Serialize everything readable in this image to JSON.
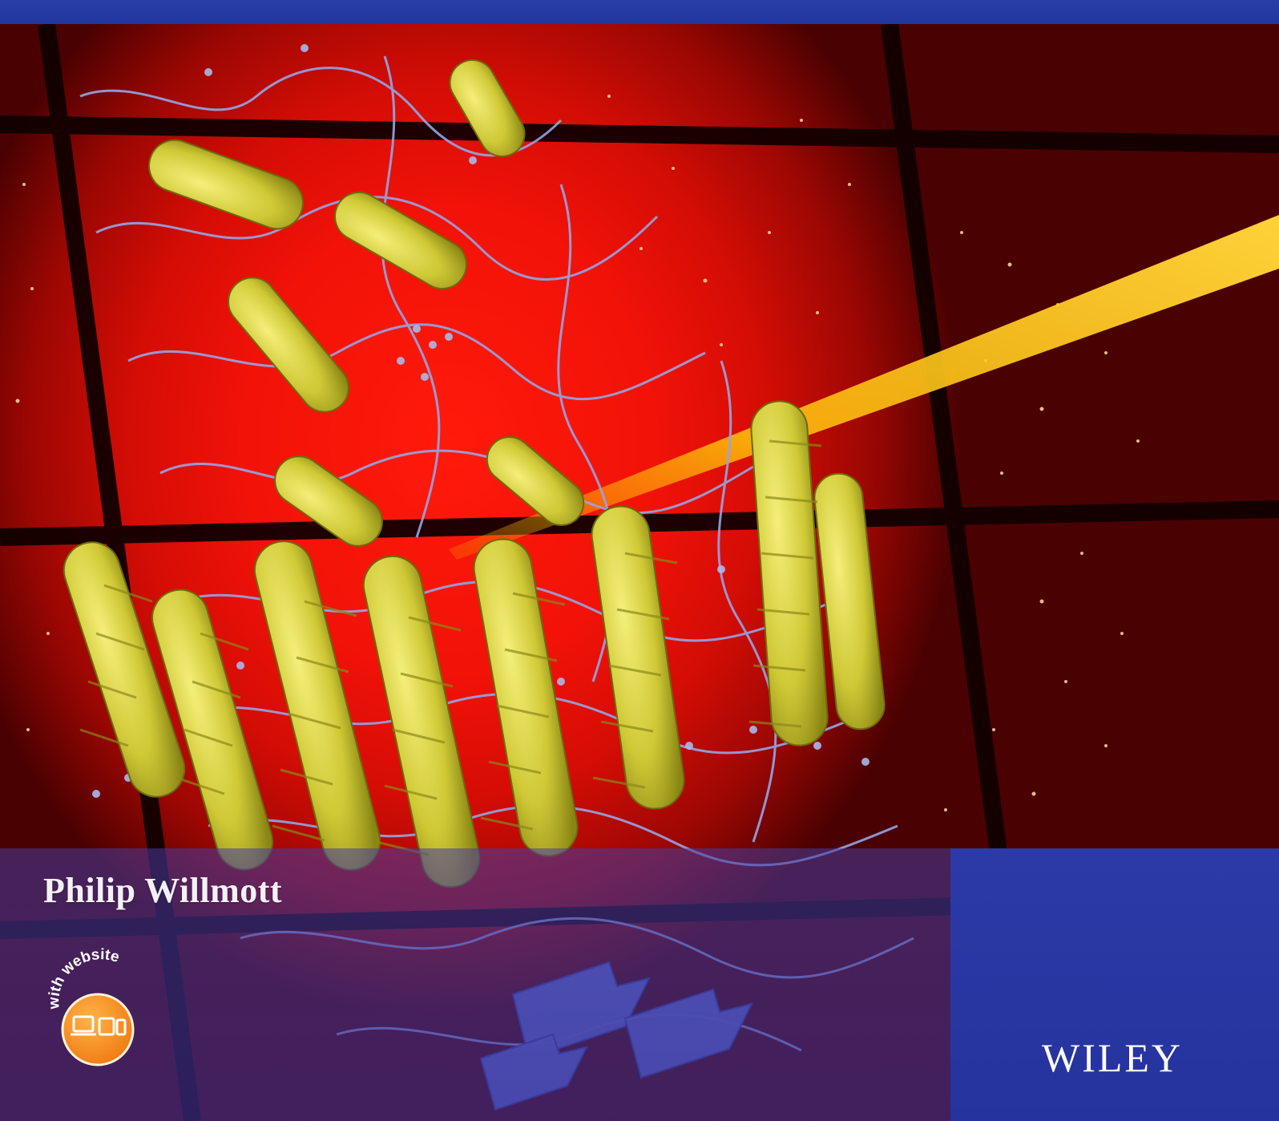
{
  "cover": {
    "author": "Philip Willmott",
    "publisher": "WILEY",
    "badge_text": "with website",
    "badge_icon": "devices-icon",
    "background_icon": "protein-structure-illustration",
    "colors": {
      "top_bar": "#2b3fa8",
      "background_red": "#f21208",
      "helix_yellow": "#d8d23a",
      "coil_blue": "#8fa2e0",
      "beam_yellow": "#ffc20a",
      "blue_panel": "#2c3aa8",
      "badge_orange": "#f7931e"
    }
  }
}
